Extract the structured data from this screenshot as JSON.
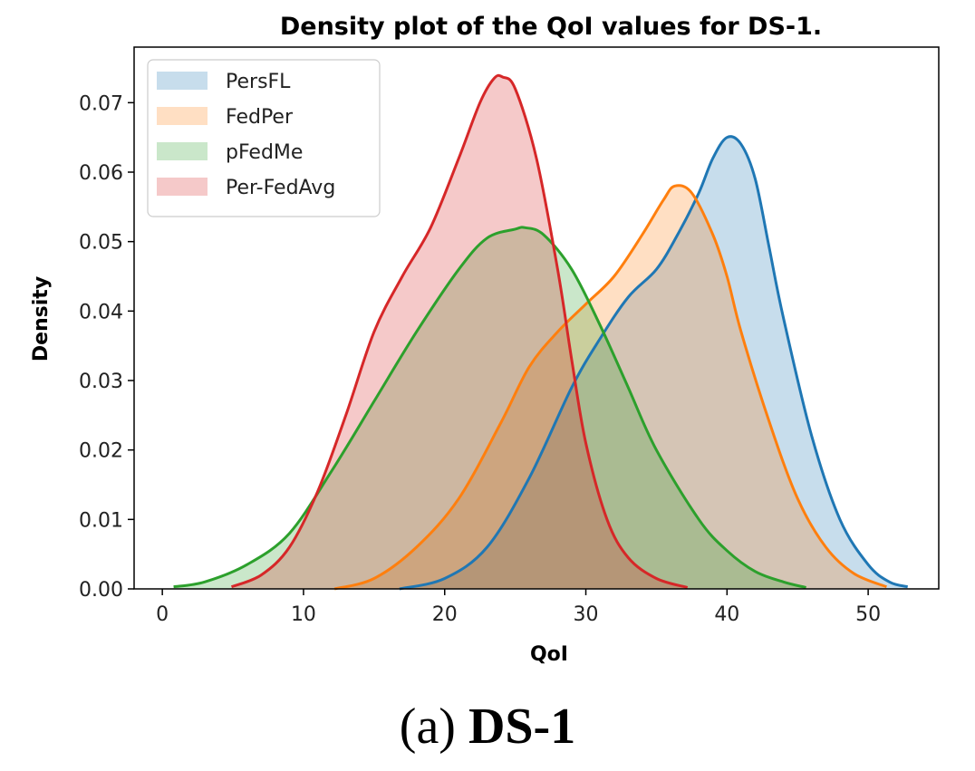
{
  "chart_data": {
    "type": "area",
    "title": "Density plot of the QoI values for DS-1.",
    "xlabel": "QoI",
    "ylabel": "Density",
    "xlim": [
      -2,
      55
    ],
    "ylim": [
      0,
      0.078
    ],
    "xticks": [
      0,
      10,
      20,
      30,
      40,
      50
    ],
    "yticks": [
      0.0,
      0.01,
      0.02,
      0.03,
      0.04,
      0.05,
      0.06,
      0.07
    ],
    "ytick_labels": [
      "0.00",
      "0.01",
      "0.02",
      "0.03",
      "0.04",
      "0.05",
      "0.06",
      "0.07"
    ],
    "legend_position": "upper-left",
    "series": [
      {
        "name": "PersFL",
        "color": "#1f77b4",
        "x": [
          16.8,
          20,
          23,
          26,
          29,
          31,
          33,
          35,
          36.5,
          38,
          39,
          40,
          41,
          42,
          43,
          44,
          46,
          48,
          50,
          51.5,
          52.8
        ],
        "y": [
          0.0,
          0.0015,
          0.006,
          0.016,
          0.029,
          0.036,
          0.042,
          0.046,
          0.051,
          0.057,
          0.062,
          0.065,
          0.064,
          0.059,
          0.049,
          0.039,
          0.022,
          0.01,
          0.0035,
          0.001,
          0.0003
        ]
      },
      {
        "name": "FedPer",
        "color": "#ff7f0e",
        "x": [
          12.2,
          15,
          18,
          21,
          24,
          26,
          28,
          30,
          32,
          34,
          35.5,
          36.3,
          37.5,
          39,
          40,
          41,
          43,
          45,
          47,
          49,
          51.3
        ],
        "y": [
          0.0,
          0.0015,
          0.006,
          0.013,
          0.024,
          0.032,
          0.037,
          0.041,
          0.045,
          0.051,
          0.056,
          0.058,
          0.057,
          0.051,
          0.045,
          0.037,
          0.024,
          0.013,
          0.006,
          0.0022,
          0.0003
        ]
      },
      {
        "name": "pFedMe",
        "color": "#2ca02c",
        "x": [
          0.8,
          3,
          6,
          9,
          12,
          15,
          18,
          21,
          23,
          25,
          25.7,
          27,
          29,
          31,
          33,
          35,
          38,
          40,
          42,
          44,
          45.6
        ],
        "y": [
          0.0003,
          0.001,
          0.0035,
          0.008,
          0.017,
          0.027,
          0.037,
          0.046,
          0.0505,
          0.0518,
          0.052,
          0.051,
          0.046,
          0.038,
          0.029,
          0.02,
          0.01,
          0.0055,
          0.0025,
          0.001,
          0.0002
        ]
      },
      {
        "name": "Per-FedAvg",
        "color": "#d62728",
        "x": [
          4.9,
          7,
          9,
          11,
          13,
          15,
          17,
          19,
          21,
          22.5,
          23.5,
          24.1,
          25,
          26.5,
          28,
          29,
          30,
          31.5,
          33,
          35,
          37.2
        ],
        "y": [
          0.0003,
          0.002,
          0.006,
          0.014,
          0.025,
          0.037,
          0.045,
          0.052,
          0.062,
          0.07,
          0.0735,
          0.0737,
          0.072,
          0.062,
          0.046,
          0.033,
          0.021,
          0.01,
          0.0045,
          0.0015,
          0.0002
        ]
      }
    ]
  },
  "caption": {
    "prefix": "(a)",
    "label": "DS-1"
  }
}
